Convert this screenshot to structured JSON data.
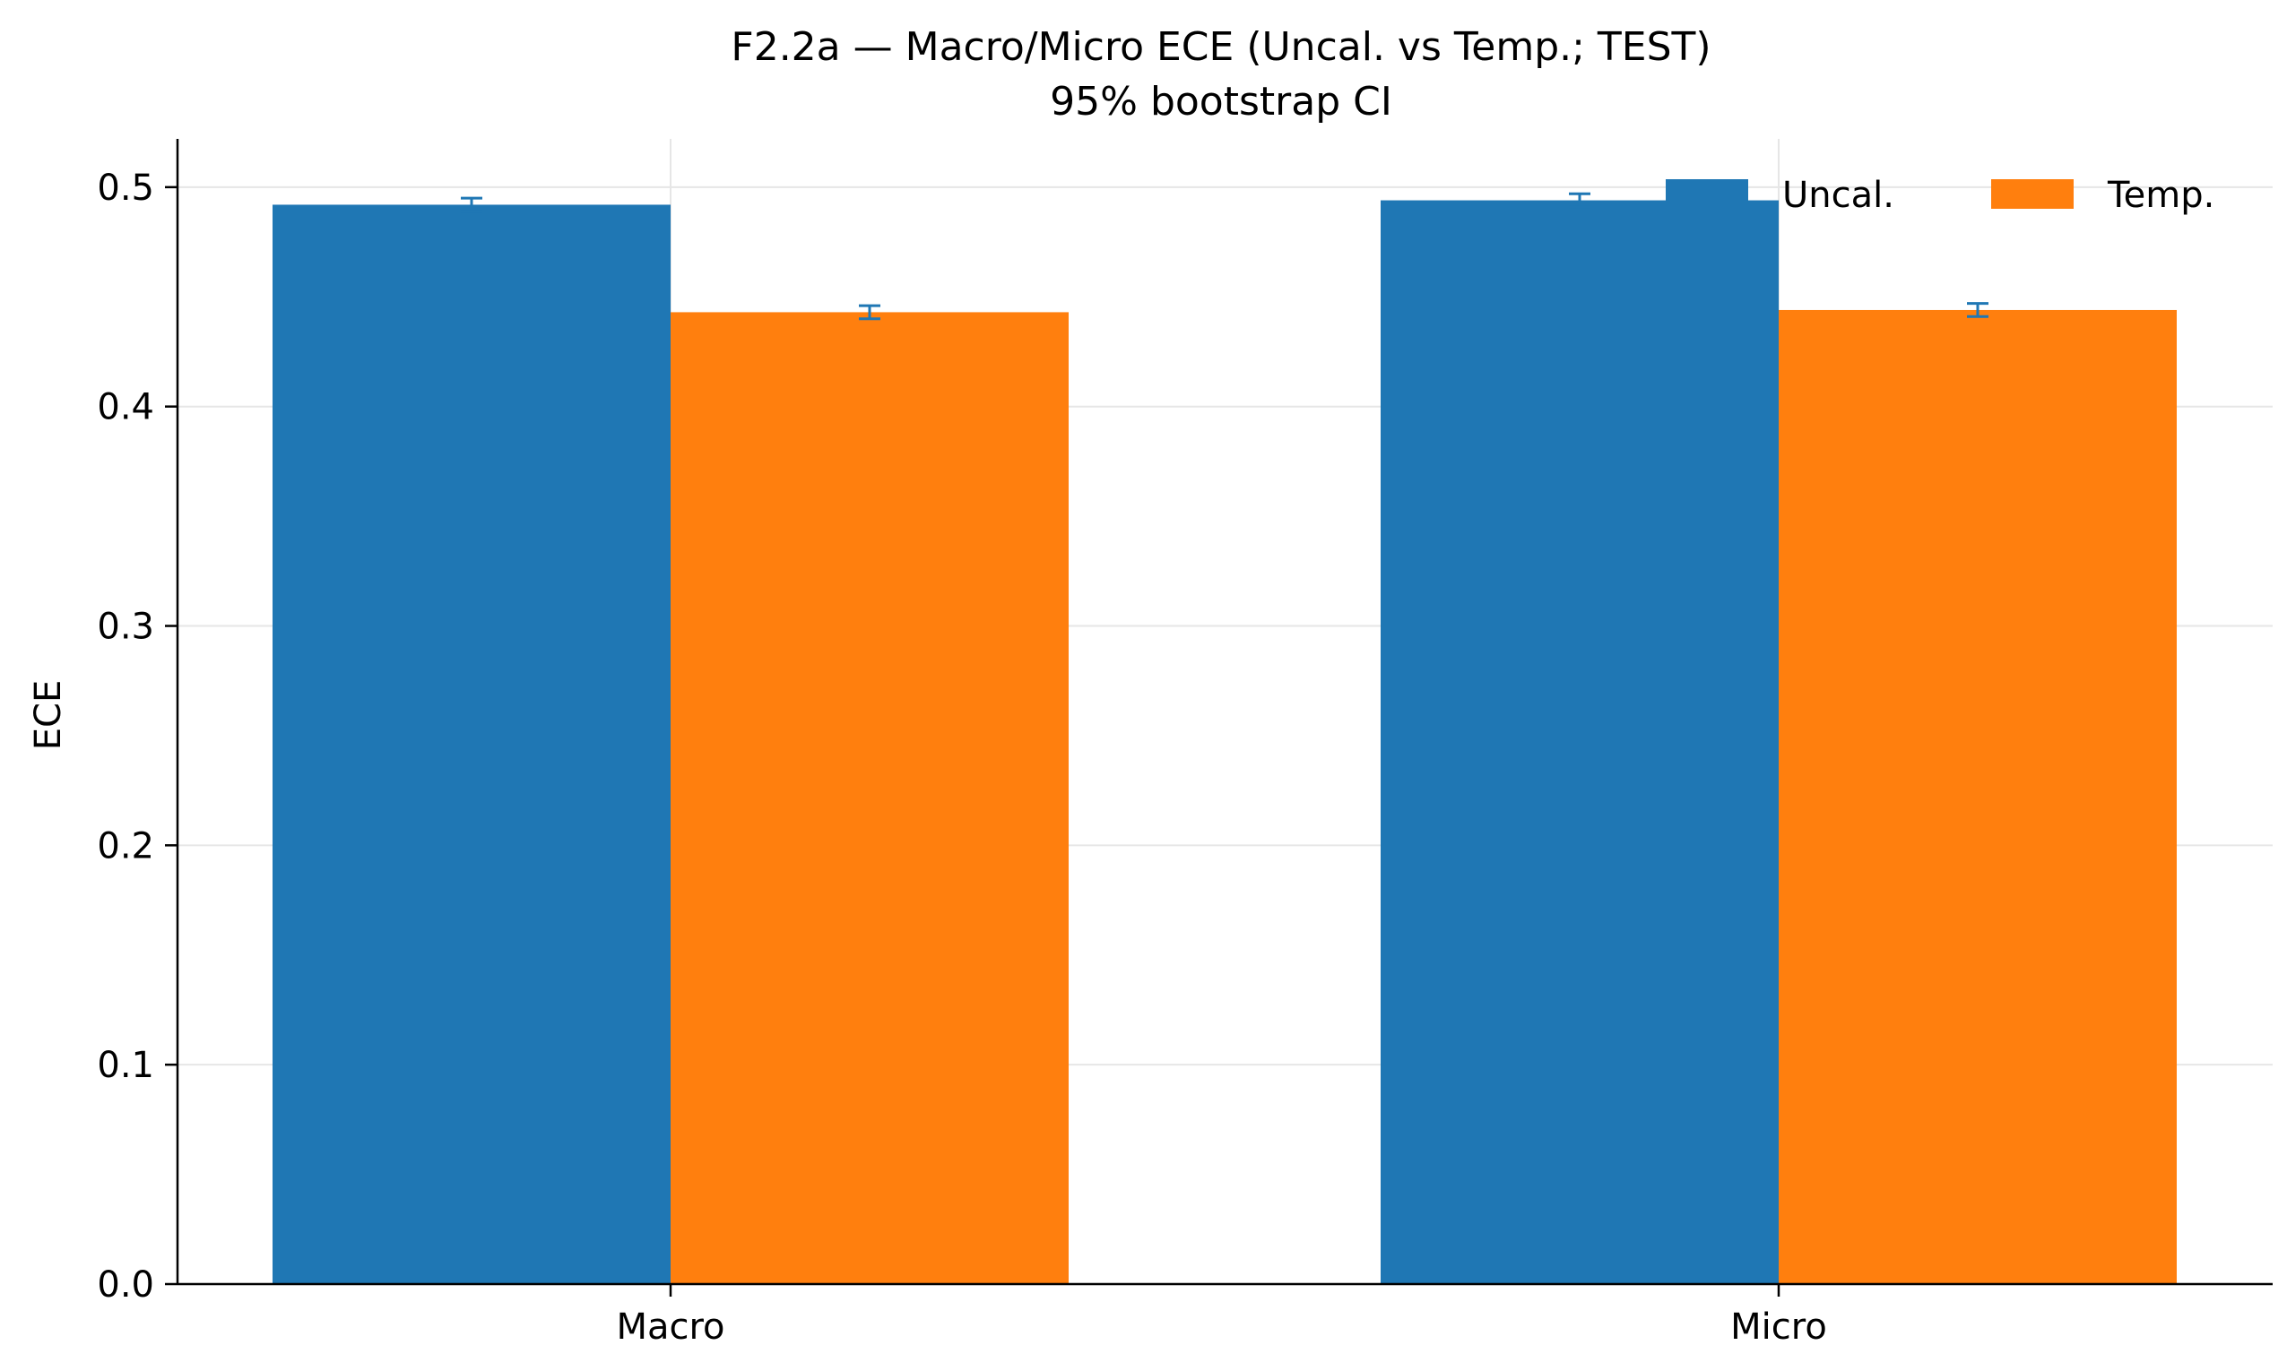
{
  "chart_data": {
    "type": "bar",
    "title": "F2.2a — Macro/Micro ECE (Uncal. vs Temp.; TEST)",
    "subtitle": "95% bootstrap CI",
    "xlabel": "",
    "ylabel": "ECE",
    "categories": [
      "Macro",
      "Micro"
    ],
    "ylim": [
      0,
      0.522
    ],
    "yticks": [
      0.0,
      0.1,
      0.2,
      0.3,
      0.4,
      0.5
    ],
    "ytick_labels": [
      "0.0",
      "0.1",
      "0.2",
      "0.3",
      "0.4",
      "0.5"
    ],
    "grid": true,
    "legend_position": "top-right",
    "series": [
      {
        "name": "Uncal.",
        "color": "#1f77b4",
        "values": [
          0.492,
          0.494
        ],
        "ci_low": [
          0.489,
          0.491
        ],
        "ci_high": [
          0.495,
          0.497
        ]
      },
      {
        "name": "Temp.",
        "color": "#ff7f0e",
        "values": [
          0.443,
          0.444
        ],
        "ci_low": [
          0.44,
          0.441
        ],
        "ci_high": [
          0.446,
          0.447
        ]
      }
    ],
    "error_bar_color": "#1f77b4"
  }
}
